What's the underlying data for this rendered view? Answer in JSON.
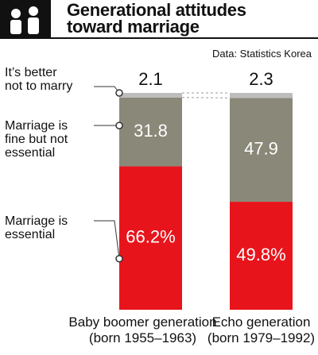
{
  "chart_data": {
    "type": "stacked-bar",
    "title": "Generational attitudes\ntoward marriage",
    "source": "Data: Statistics Korea",
    "categories": [
      "Baby boomer generation\n(born 1955–1963)",
      "Echo generation\n(born 1979–1992)"
    ],
    "series": [
      {
        "name": "Marriage is\nessential",
        "color": "#e8141c",
        "values": [
          66.2,
          49.8
        ],
        "value_labels": [
          "66.2%",
          "49.8%"
        ]
      },
      {
        "name": "Marriage is\nfine but not\nessential",
        "color": "#8a8878",
        "values": [
          31.8,
          47.9
        ]
      },
      {
        "name": "It’s better\nnot to marry",
        "color": "#bdbdbd",
        "values": [
          2.1,
          2.3
        ]
      }
    ]
  }
}
